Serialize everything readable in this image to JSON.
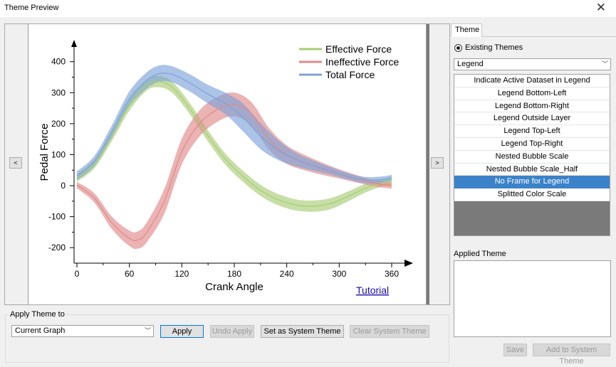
{
  "window": {
    "title": "Theme Preview",
    "close_symbol": "✕"
  },
  "preview": {
    "prev_label": "<",
    "next_label": ">",
    "tutorial_label": "Tutorial"
  },
  "chart_data": {
    "type": "line",
    "xlabel": "Crank Angle",
    "ylabel": "Pedal Force",
    "xlim": [
      0,
      360
    ],
    "ylim": [
      -250,
      420
    ],
    "x_ticks": [
      "0",
      "60",
      "120",
      "180",
      "240",
      "300",
      "360"
    ],
    "y_ticks": [
      "400",
      "300",
      "200",
      "100",
      "0",
      "-100",
      "-200"
    ],
    "legend_position": "top-right",
    "series": [
      {
        "name": "Effective Force",
        "color": "#a9cc76",
        "x": [
          0,
          20,
          40,
          60,
          80,
          95,
          110,
          130,
          150,
          170,
          190,
          210,
          230,
          250,
          270,
          290,
          310,
          330,
          350,
          360
        ],
        "y": [
          25,
          70,
          160,
          260,
          325,
          335,
          315,
          245,
          160,
          85,
          30,
          -15,
          -45,
          -62,
          -66,
          -58,
          -35,
          -8,
          10,
          15
        ],
        "band": [
          12,
          14,
          16,
          18,
          18,
          18,
          18,
          18,
          18,
          18,
          18,
          18,
          18,
          18,
          18,
          18,
          16,
          14,
          12,
          12
        ]
      },
      {
        "name": "Ineffective Force",
        "color": "#e08a8a",
        "x": [
          0,
          20,
          40,
          60,
          70,
          80,
          100,
          120,
          140,
          160,
          180,
          200,
          220,
          240,
          260,
          280,
          300,
          320,
          340,
          360
        ],
        "y": [
          2,
          -40,
          -120,
          -170,
          -175,
          -150,
          -50,
          110,
          200,
          245,
          262,
          230,
          150,
          100,
          75,
          55,
          38,
          22,
          8,
          0
        ],
        "band": [
          10,
          15,
          20,
          25,
          28,
          32,
          40,
          42,
          42,
          40,
          38,
          38,
          35,
          30,
          25,
          20,
          15,
          12,
          10,
          10
        ]
      },
      {
        "name": "Total Force",
        "color": "#7ea3d8",
        "x": [
          0,
          20,
          40,
          60,
          80,
          95,
          110,
          130,
          150,
          170,
          190,
          210,
          230,
          250,
          270,
          290,
          310,
          330,
          350,
          360
        ],
        "y": [
          32,
          80,
          175,
          280,
          340,
          362,
          358,
          330,
          295,
          265,
          220,
          160,
          115,
          85,
          65,
          48,
          30,
          18,
          20,
          25
        ],
        "band": [
          14,
          16,
          20,
          24,
          26,
          26,
          26,
          28,
          30,
          35,
          45,
          42,
          32,
          22,
          16,
          12,
          10,
          10,
          10,
          10
        ]
      }
    ]
  },
  "theme_panel": {
    "tab_label": "Theme",
    "existing_label": "Existing Themes",
    "category_value": "Legend",
    "themes": [
      {
        "label": "Indicate Active Dataset in Legend",
        "selected": false
      },
      {
        "label": "Legend Bottom-Left",
        "selected": false
      },
      {
        "label": "Legend Bottom-Right",
        "selected": false
      },
      {
        "label": "Legend Outside Layer",
        "selected": false
      },
      {
        "label": "Legend Top-Left",
        "selected": false
      },
      {
        "label": "Legend Top-Right",
        "selected": false
      },
      {
        "label": "Nested Bubble Scale",
        "selected": false
      },
      {
        "label": "Nested Bubble Scale_Half",
        "selected": false
      },
      {
        "label": "No Frame for Legend",
        "selected": true
      },
      {
        "label": "Splitted Color Scale",
        "selected": false
      }
    ],
    "applied_label": "Applied Theme",
    "save_label": "Save",
    "add_system_label": "Add to System Theme"
  },
  "apply_group": {
    "label": "Apply Theme to",
    "target_value": "Current Graph",
    "apply_label": "Apply",
    "undo_label": "Undo Apply",
    "set_system_label": "Set as System Theme",
    "clear_system_label": "Clear System Theme"
  },
  "colors": {
    "selection": "#3c82c8",
    "focus": "#0078d7",
    "link": "#1a0dab"
  }
}
